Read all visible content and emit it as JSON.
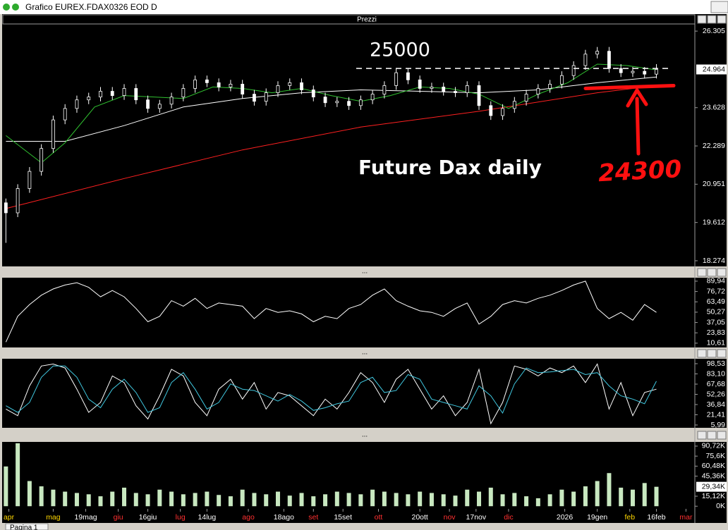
{
  "window": {
    "title": "Grafico EUREX.FDAX0326 EOD D",
    "tab": "Pagina 1"
  },
  "chart_data": [
    {
      "type": "candlestick",
      "title": "Prezzi",
      "x": [
        0,
        4,
        8,
        12,
        16,
        20,
        24,
        28,
        32,
        36,
        40,
        44,
        48,
        52,
        56,
        60,
        64,
        68,
        72,
        76,
        80,
        84,
        88,
        92,
        96,
        100,
        104,
        108,
        112,
        116,
        120,
        124,
        128,
        132,
        136,
        140,
        144,
        148,
        152,
        156,
        160,
        164,
        168,
        172,
        176,
        180,
        184,
        188,
        192,
        196,
        200,
        204,
        208,
        212,
        216,
        220
      ],
      "open": [
        20300,
        19950,
        20800,
        21400,
        22200,
        23200,
        23600,
        23900,
        24000,
        24200,
        24050,
        24300,
        23900,
        23600,
        23750,
        24000,
        24300,
        24600,
        24500,
        24350,
        24450,
        24100,
        23850,
        24150,
        24400,
        24500,
        24250,
        24000,
        23800,
        23850,
        23700,
        23900,
        24100,
        24400,
        24850,
        24600,
        24300,
        24350,
        24200,
        24150,
        24400,
        23700,
        23350,
        23600,
        23850,
        24100,
        24300,
        24450,
        24750,
        25100,
        25500,
        25600,
        25000,
        24850,
        24900,
        24800
      ],
      "high": [
        20450,
        20950,
        21550,
        22350,
        23350,
        23750,
        24050,
        24150,
        24350,
        24350,
        24450,
        24450,
        24050,
        23900,
        24150,
        24450,
        24750,
        24750,
        24650,
        24600,
        24600,
        24250,
        24300,
        24550,
        24650,
        24650,
        24400,
        24150,
        24000,
        24000,
        24050,
        24250,
        24550,
        25000,
        25000,
        24750,
        24500,
        24500,
        24350,
        24550,
        24550,
        23850,
        23750,
        24000,
        24250,
        24450,
        24600,
        24900,
        25250,
        25650,
        25750,
        25750,
        25150,
        25050,
        25050,
        25150
      ],
      "low": [
        18900,
        19800,
        20650,
        21250,
        22050,
        23050,
        23450,
        23750,
        23850,
        23900,
        23900,
        23750,
        23450,
        23450,
        23600,
        23850,
        24150,
        24350,
        24200,
        24200,
        23950,
        23700,
        23700,
        24000,
        24250,
        24100,
        23850,
        23650,
        23650,
        23550,
        23550,
        23750,
        23950,
        24250,
        24450,
        24150,
        24150,
        24050,
        24000,
        24000,
        23550,
        23200,
        23200,
        23450,
        23700,
        23950,
        24150,
        24300,
        24600,
        24950,
        25350,
        24850,
        24700,
        24700,
        24650,
        24650
      ],
      "close": [
        19950,
        20800,
        21400,
        22200,
        23200,
        23600,
        23900,
        24000,
        24200,
        24050,
        24300,
        23900,
        23600,
        23750,
        24000,
        24300,
        24600,
        24500,
        24350,
        24450,
        24100,
        23850,
        24150,
        24400,
        24500,
        24250,
        24000,
        23800,
        23850,
        23700,
        23900,
        24100,
        24400,
        24850,
        24600,
        24300,
        24350,
        24200,
        24150,
        24400,
        23700,
        23350,
        23600,
        23850,
        24100,
        24300,
        24450,
        24750,
        25100,
        25500,
        25600,
        25000,
        24850,
        24900,
        24800,
        24964
      ],
      "up_color": "#000000",
      "down_color": "#ffffff",
      "wick_color": "#ffffff",
      "lines": [
        {
          "color": "#ff2020",
          "x": [
            0,
            40,
            80,
            120,
            160,
            200,
            220
          ],
          "values": [
            20100,
            21150,
            22150,
            22950,
            23500,
            24150,
            24400
          ]
        },
        {
          "color": "#ffffff",
          "x": [
            0,
            20,
            40,
            60,
            80,
            100,
            120,
            140,
            160,
            180,
            200,
            220
          ],
          "values": [
            22450,
            22450,
            23000,
            23650,
            23950,
            24150,
            24250,
            24200,
            24150,
            24250,
            24500,
            24700
          ]
        },
        {
          "color": "#30c030",
          "x": [
            0,
            12,
            20,
            30,
            40,
            50,
            60,
            70,
            80,
            90,
            100,
            110,
            120,
            130,
            140,
            150,
            160,
            170,
            180,
            190,
            200,
            210,
            220
          ],
          "values": [
            22650,
            21700,
            22400,
            23650,
            24050,
            24000,
            23950,
            24350,
            24300,
            24150,
            24300,
            24050,
            23850,
            24050,
            24350,
            24300,
            24100,
            23600,
            24100,
            24500,
            25150,
            25100,
            24950
          ]
        }
      ],
      "xlim": [
        -0.8,
        233
      ],
      "xticks": [
        {
          "value": 1,
          "label": "apr"
        },
        {
          "value": 16,
          "label": "mag"
        },
        {
          "value": 27,
          "label": "19mag"
        },
        {
          "value": 38,
          "label": "giu"
        },
        {
          "value": 48,
          "label": "16giu"
        },
        {
          "value": 59,
          "label": "lug"
        },
        {
          "value": 68,
          "label": "14lug"
        },
        {
          "value": 82,
          "label": "ago"
        },
        {
          "value": 94,
          "label": "18ago"
        },
        {
          "value": 104,
          "label": "set"
        },
        {
          "value": 114,
          "label": "15set"
        },
        {
          "value": 126,
          "label": "ott"
        },
        {
          "value": 140,
          "label": "20ott"
        },
        {
          "value": 150,
          "label": "nov"
        },
        {
          "value": 159,
          "label": "17nov"
        },
        {
          "value": 170,
          "label": "dic"
        },
        {
          "value": 189,
          "label": "2026"
        },
        {
          "value": 200,
          "label": "19gen"
        },
        {
          "value": 211,
          "label": "feb"
        },
        {
          "value": 220,
          "label": "16feb"
        },
        {
          "value": 230,
          "label": "mar"
        }
      ],
      "xtick_colors": [
        "#ffd700",
        "#ffd700",
        "#ffffff",
        "#ff3030",
        "#ffffff",
        "#ff3030",
        "#ffffff",
        "#ff3030",
        "#ffffff",
        "#ff3030",
        "#ffffff",
        "#ff3030",
        "#ffffff",
        "#ff3030",
        "#ffffff",
        "#ff3030",
        "#ffffff",
        "#ffffff",
        "#ffd700",
        "#ffffff",
        "#ff3030"
      ],
      "ylim": [
        18150,
        26530
      ],
      "yticks": [
        {
          "value": 26305,
          "label": "26.305"
        },
        {
          "value": 23628,
          "label": "23.628"
        },
        {
          "value": 22289,
          "label": "22.289"
        },
        {
          "value": 20951,
          "label": "20.951"
        },
        {
          "value": 19612,
          "label": "19.612"
        },
        {
          "value": 18274,
          "label": "18.274"
        }
      ],
      "last": {
        "value": 24964,
        "label": "24.964"
      },
      "annotations": [
        {
          "text": "25000",
          "value": 25000
        },
        {
          "text": "Future Dax daily"
        },
        {
          "text": "24300",
          "value": 24300
        }
      ]
    },
    {
      "type": "line",
      "title": "...",
      "color": "#ffffff",
      "values": [
        12,
        45,
        60,
        72,
        80,
        85,
        88,
        82,
        70,
        78,
        70,
        55,
        38,
        45,
        65,
        58,
        68,
        55,
        62,
        60,
        58,
        42,
        55,
        50,
        52,
        48,
        38,
        45,
        42,
        55,
        60,
        72,
        80,
        65,
        58,
        52,
        50,
        45,
        55,
        62,
        35,
        45,
        60,
        65,
        62,
        68,
        72,
        78,
        85,
        90,
        55,
        42,
        50,
        40,
        60,
        50
      ],
      "ylim": [
        6,
        93.5
      ],
      "yticks": [
        {
          "value": 89.94,
          "label": "89,94"
        },
        {
          "value": 76.72,
          "label": "76,72"
        },
        {
          "value": 63.49,
          "label": "63,49"
        },
        {
          "value": 50.27,
          "label": "50,27"
        },
        {
          "value": 37.05,
          "label": "37,05"
        },
        {
          "value": 23.83,
          "label": "23,83"
        },
        {
          "value": 10.61,
          "label": "10,61"
        }
      ]
    },
    {
      "type": "line",
      "title": "...",
      "series": [
        {
          "color": "#ffffff",
          "values": [
            30,
            20,
            65,
            95,
            98,
            92,
            60,
            25,
            40,
            80,
            70,
            35,
            15,
            50,
            90,
            80,
            40,
            20,
            60,
            75,
            45,
            70,
            30,
            55,
            50,
            35,
            20,
            45,
            30,
            55,
            85,
            70,
            40,
            75,
            90,
            60,
            30,
            50,
            20,
            40,
            90,
            8,
            40,
            95,
            90,
            80,
            92,
            85,
            95,
            70,
            98,
            30,
            70,
            20,
            55,
            60
          ]
        },
        {
          "color": "#40c8e0",
          "values": [
            35,
            25,
            40,
            78,
            95,
            95,
            78,
            45,
            32,
            60,
            75,
            55,
            25,
            32,
            70,
            85,
            60,
            30,
            40,
            68,
            60,
            58,
            50,
            42,
            52,
            42,
            28,
            32,
            38,
            42,
            70,
            78,
            55,
            58,
            82,
            75,
            45,
            40,
            35,
            30,
            65,
            50,
            24,
            68,
            92,
            85,
            86,
            88,
            90,
            82,
            85,
            65,
            50,
            45,
            38,
            72
          ]
        }
      ],
      "ylim": [
        2.8,
        104.9
      ],
      "yticks": [
        {
          "value": 98.53,
          "label": "98,53"
        },
        {
          "value": 83.1,
          "label": "83,10"
        },
        {
          "value": 67.68,
          "label": "67,68"
        },
        {
          "value": 52.26,
          "label": "52,26"
        },
        {
          "value": 36.84,
          "label": "36,84"
        },
        {
          "value": 21.41,
          "label": "21,41"
        },
        {
          "value": 5.99,
          "label": "5,99"
        }
      ]
    },
    {
      "type": "bar",
      "title": "...",
      "color": "#c8e8c0",
      "values": [
        60000,
        95000,
        38000,
        30000,
        25000,
        22000,
        20000,
        18000,
        15000,
        22000,
        28000,
        20000,
        18000,
        25000,
        22000,
        18000,
        20000,
        22000,
        17000,
        15000,
        25000,
        20000,
        18000,
        22000,
        16000,
        20000,
        15000,
        18000,
        22000,
        20000,
        18000,
        25000,
        22000,
        20000,
        18000,
        22000,
        20000,
        18000,
        16000,
        25000,
        22000,
        28000,
        18000,
        20000,
        15000,
        12000,
        18000,
        25000,
        22000,
        30000,
        38000,
        50000,
        28000,
        25000,
        35000,
        29340
      ],
      "ylim": [
        -4000,
        96000
      ],
      "yticks": [
        {
          "value": 90720,
          "label": "90,72K"
        },
        {
          "value": 75600,
          "label": "75,6K"
        },
        {
          "value": 60480,
          "label": "60,48K"
        },
        {
          "value": 45360,
          "label": "45,36K"
        },
        {
          "value": 15120,
          "label": "15,12K"
        },
        {
          "value": 0,
          "label": "0K"
        }
      ],
      "last": {
        "value": 29340,
        "label": "29,34K"
      }
    }
  ]
}
